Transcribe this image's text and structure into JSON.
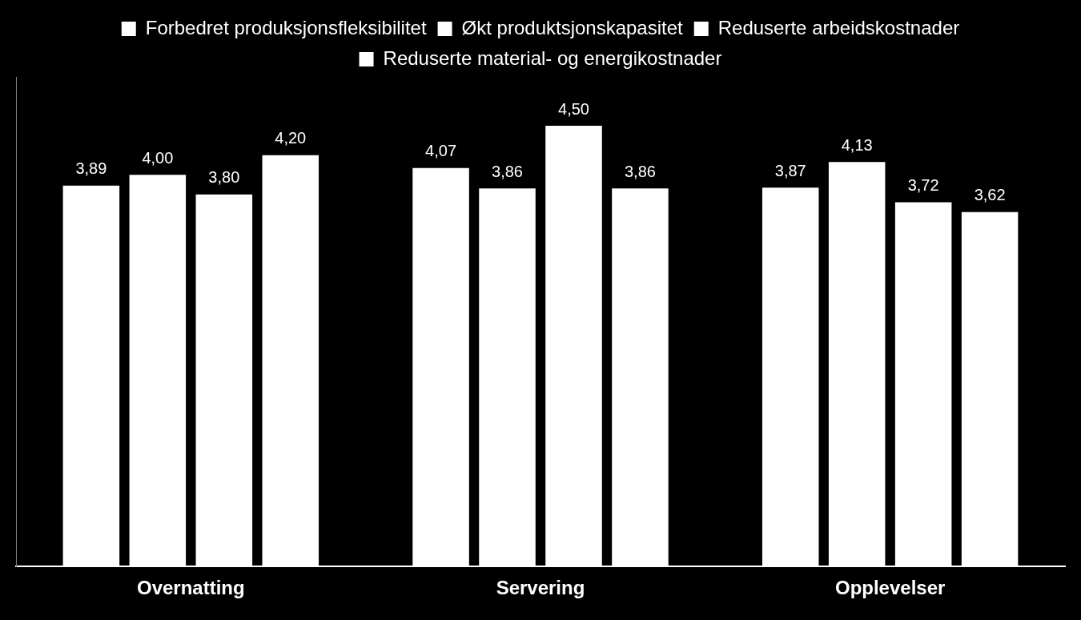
{
  "chart_data": {
    "type": "bar",
    "categories": [
      "Overnatting",
      "Servering",
      "Opplevelser"
    ],
    "series": [
      {
        "name": "Forbedret produksjonsfleksibilitet",
        "color": "#ffffff",
        "values": [
          3.89,
          4.07,
          3.87
        ],
        "value_labels": [
          "3,89",
          "4,07",
          "3,87"
        ]
      },
      {
        "name": "Økt produktsjonskapasitet",
        "color": "#ffffff",
        "values": [
          4.0,
          3.86,
          4.13
        ],
        "value_labels": [
          "4,00",
          "3,86",
          "4,13"
        ]
      },
      {
        "name": "Reduserte arbeidskostnader",
        "color": "#ffffff",
        "values": [
          3.8,
          4.5,
          3.72
        ],
        "value_labels": [
          "3,80",
          "4,50",
          "3,72"
        ]
      },
      {
        "name": "Reduserte material- og energikostnader",
        "color": "#ffffff",
        "values": [
          4.2,
          3.86,
          3.62
        ],
        "value_labels": [
          "4,20",
          "3,86",
          "3,62"
        ]
      }
    ],
    "ylim": [
      0,
      5
    ],
    "grid": false,
    "legend": "top",
    "data_labels": true,
    "tick_labels": "x"
  }
}
